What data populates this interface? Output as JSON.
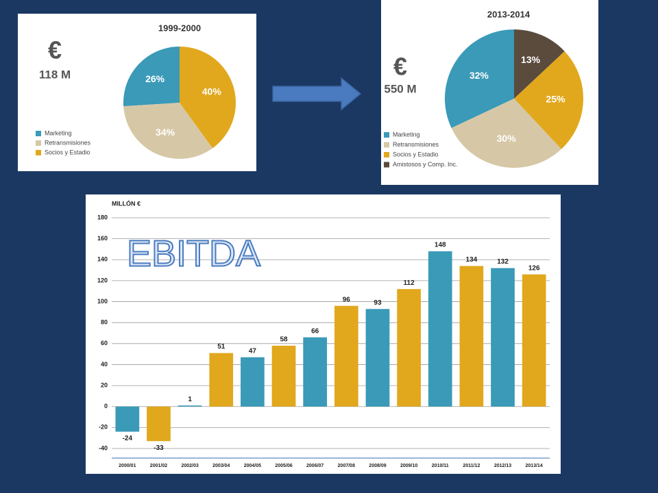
{
  "chart_data": [
    {
      "type": "pie",
      "title": "1999-2000",
      "annotations": [
        "€",
        "118 M"
      ],
      "categories": [
        "Marketing",
        "Retransmisiones",
        "Socios y Estadio"
      ],
      "values": [
        26,
        34,
        40
      ],
      "value_labels": [
        "26%",
        "34%",
        "40%"
      ],
      "colors": [
        "#3a9ab8",
        "#d6c8a6",
        "#e1a81d"
      ]
    },
    {
      "type": "pie",
      "title": "2013-2014",
      "annotations": [
        "€",
        "550 M"
      ],
      "categories": [
        "Marketing",
        "Retransmisiones",
        "Socios y Estadio",
        "Amistosos y Comp. Inc."
      ],
      "values": [
        32,
        30,
        25,
        13
      ],
      "value_labels": [
        "32%",
        "30%",
        "25%",
        "13%"
      ],
      "colors": [
        "#3a9ab8",
        "#d6c8a6",
        "#e1a81d",
        "#5b4b3d"
      ]
    },
    {
      "type": "bar",
      "y_label": "MILLÓN €",
      "annotation": "EBITDA",
      "categories": [
        "2000/01",
        "2001/02",
        "2002/03",
        "2003/04",
        "2004/05",
        "2005/06",
        "2006/07",
        "2007/08",
        "2008/09",
        "2009/10",
        "2010/11",
        "2011/12",
        "2012/13",
        "2013/14"
      ],
      "values": [
        -24,
        -33,
        1,
        51,
        47,
        58,
        66,
        96,
        93,
        112,
        148,
        134,
        132,
        126
      ],
      "colors": [
        "#3a9ab8",
        "#e1a81d",
        "#3a9ab8",
        "#e1a81d",
        "#3a9ab8",
        "#e1a81d",
        "#3a9ab8",
        "#e1a81d",
        "#3a9ab8",
        "#e1a81d",
        "#3a9ab8",
        "#e1a81d",
        "#3a9ab8",
        "#e1a81d"
      ],
      "ylim": [
        -40,
        180
      ],
      "yticks": [
        -40,
        -20,
        0,
        20,
        40,
        60,
        80,
        100,
        120,
        140,
        160,
        180
      ],
      "grid": true
    }
  ]
}
